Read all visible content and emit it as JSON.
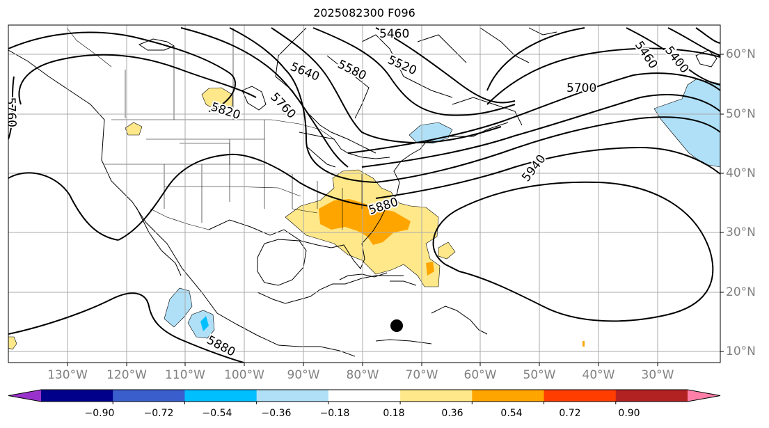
{
  "title": "2025082300 F096",
  "longitude_labels": [
    "130°W",
    "120°W",
    "110°W",
    "100°W",
    "90°W",
    "80°W",
    "70°W",
    "60°W",
    "50°W",
    "40°W",
    "30°W"
  ],
  "latitude_labels": [
    "60°N",
    "50°N",
    "40°N",
    "30°N",
    "20°N",
    "10°N"
  ],
  "contour_labels": [
    "5460",
    "5400",
    "5460",
    "5580",
    "5520",
    "5640",
    "5760",
    "5820",
    "5760",
    "5700",
    "5940",
    "5880",
    "5880"
  ],
  "colorbar": {
    "tick_labels": [
      "−0.90",
      "−0.72",
      "−0.54",
      "−0.36",
      "−0.18",
      "0.18",
      "0.36",
      "0.54",
      "0.72",
      "0.90"
    ],
    "colors": [
      "#9932cc",
      "#00008b",
      "#3a5fcd",
      "#00bfff",
      "#b0e0f8",
      "#ffffff",
      "#ffe88a",
      "#ffa500",
      "#ff3d00",
      "#b22222",
      "#ff7fa8"
    ]
  },
  "marker": "storm-center"
}
